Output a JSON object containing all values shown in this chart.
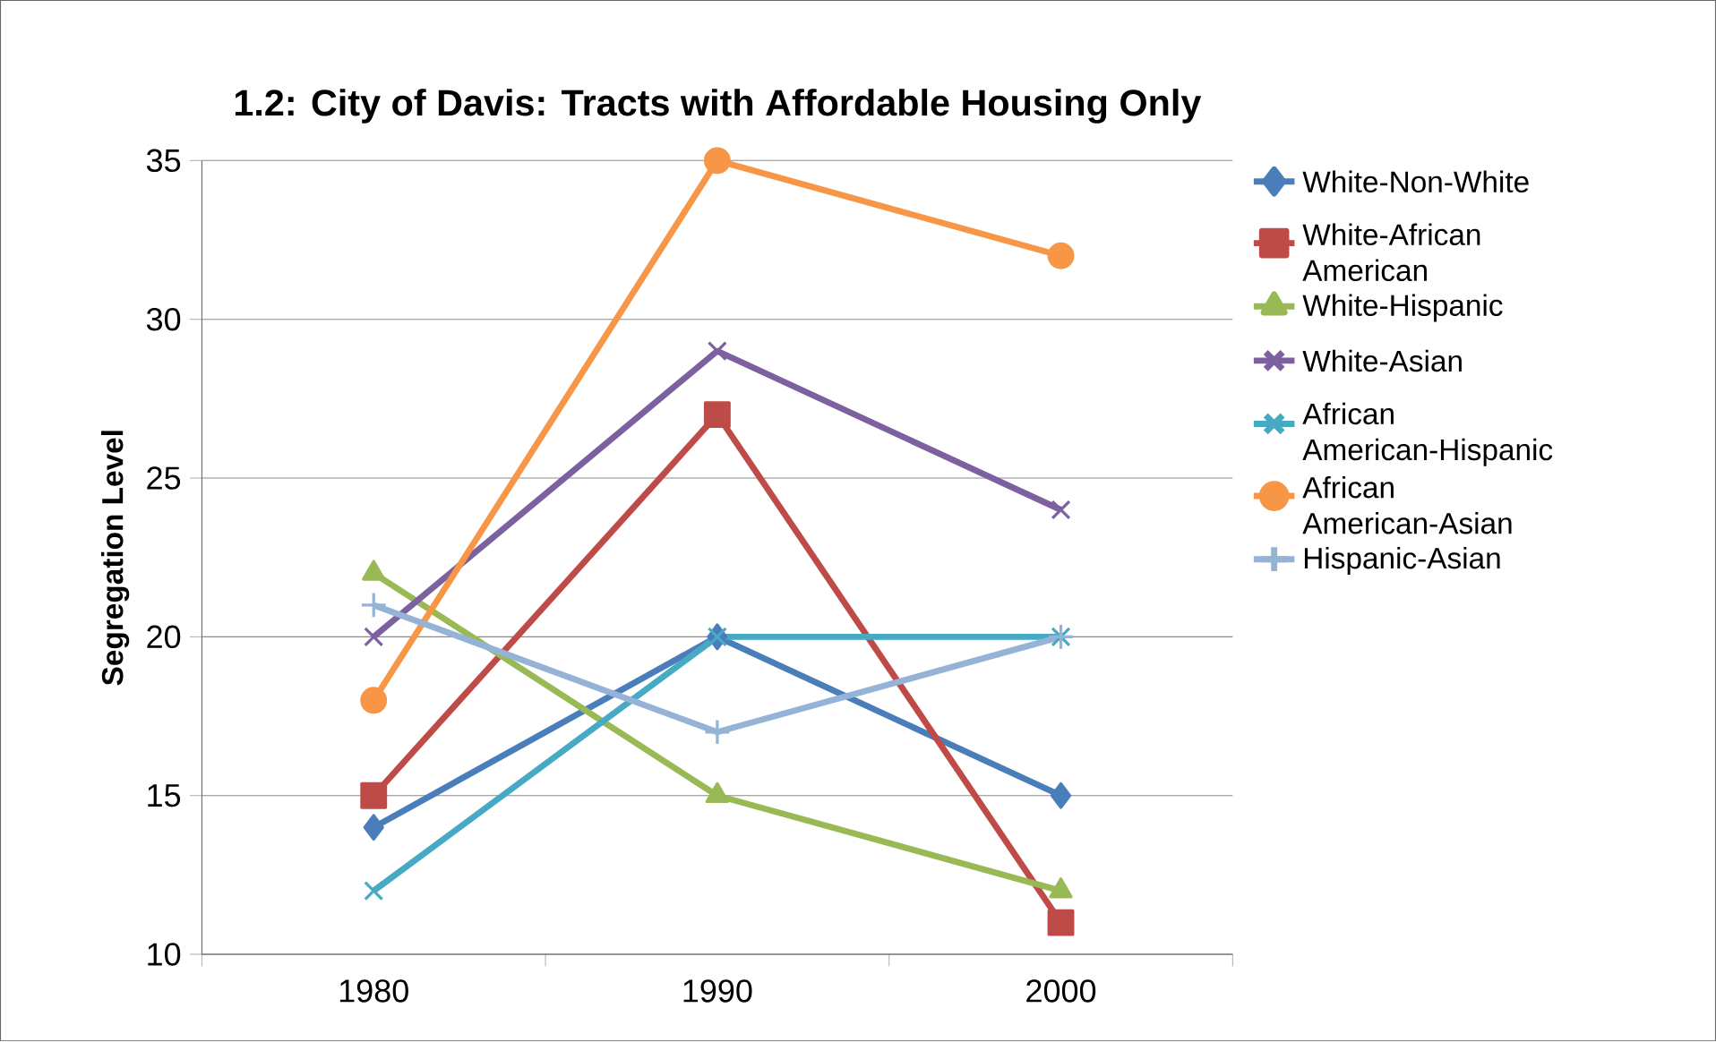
{
  "chart_data": {
    "type": "line",
    "title": "1.2: City of Davis: Tracts with Affordable Housing Only",
    "ylabel": "Segregation Level",
    "categories": [
      "1980",
      "1990",
      "2000"
    ],
    "series": [
      {
        "name": "White-Non-White",
        "color": "#4a7ebb",
        "marker": "diamond",
        "values": [
          14,
          20,
          15
        ]
      },
      {
        "name": "White-African American",
        "color": "#be4b48",
        "marker": "square",
        "values": [
          15,
          27,
          11
        ]
      },
      {
        "name": "White-Hispanic",
        "color": "#98b954",
        "marker": "triangle",
        "values": [
          22,
          15,
          12
        ]
      },
      {
        "name": "White-Asian",
        "color": "#7d60a0",
        "marker": "cross",
        "values": [
          20,
          29,
          24
        ]
      },
      {
        "name": "African American-Hispanic",
        "color": "#46aac5",
        "marker": "cross",
        "values": [
          12,
          20,
          20
        ]
      },
      {
        "name": "African American-Asian",
        "color": "#f79646",
        "marker": "circle",
        "values": [
          18,
          35,
          32
        ]
      },
      {
        "name": "Hispanic-Asian",
        "color": "#95b3d7",
        "marker": "plus",
        "values": [
          21,
          17,
          20
        ]
      }
    ],
    "ylim": [
      10,
      35
    ],
    "yticks": [
      10,
      15,
      20,
      25,
      30,
      35
    ],
    "grid": "y",
    "legend": "right",
    "line_style": "solid"
  }
}
